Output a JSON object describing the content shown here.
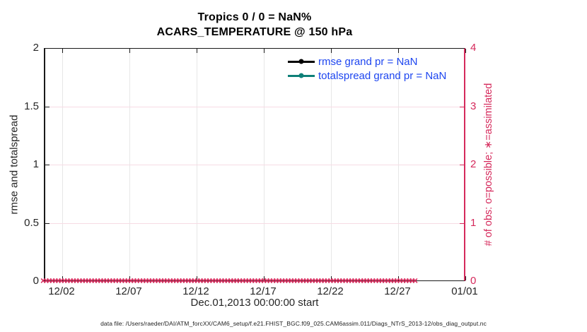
{
  "title": {
    "line1": "Tropics 0 / 0 = NaN%",
    "line2": "ACARS_TEMPERATURE @ 150 hPa"
  },
  "legend": {
    "items": [
      {
        "label": "rmse grand pr = NaN",
        "color": "#000000"
      },
      {
        "label": "totalspread grand pr = NaN",
        "color": "#0e8078"
      }
    ],
    "text_color": "#1e46f0"
  },
  "axes": {
    "left": {
      "label": "rmse and totalspread",
      "ticks": [
        "0",
        "0.5",
        "1",
        "1.5",
        "2"
      ],
      "color": "#262626",
      "ylim": [
        0,
        2
      ]
    },
    "right": {
      "label": "# of obs: o=possible; ∗=assimilated",
      "ticks": [
        "0",
        "1",
        "2",
        "3",
        "4"
      ],
      "color": "#d5295b",
      "ylim": [
        0,
        4
      ]
    },
    "x": {
      "label": "Dec.01,2013 00:00:00 start",
      "ticks": [
        "12/02",
        "12/07",
        "12/12",
        "12/17",
        "12/22",
        "12/27",
        "01/01"
      ]
    }
  },
  "colors": {
    "crimson": "#d5295b",
    "teal": "#0e8078",
    "legend_blue": "#1e46f0",
    "grid_gray": "#e7e7e7",
    "grid_pink": "#f7dbe4",
    "axis_dark": "#1a1a1a"
  },
  "footer": {
    "text": "data file: /Users/raeder/DAI/ATM_forcXX/CAM6_setup/f.e21.FHIST_BGC.f09_025.CAM6assim.011/Diags_NTrS_2013-12/obs_diag_output.nc"
  },
  "chart_data": {
    "type": "line",
    "title": "Tropics 0 / 0 = NaN% — ACARS_TEMPERATURE @ 150 hPa",
    "xlabel": "Dec.01,2013 00:00:00 start",
    "x_ticks": [
      "12/02",
      "12/07",
      "12/12",
      "12/17",
      "12/22",
      "12/27",
      "01/01"
    ],
    "x_range": [
      "12/01/2013",
      "01/01/2014"
    ],
    "left_axis": {
      "label": "rmse and totalspread",
      "ylim": [
        0,
        2
      ]
    },
    "right_axis": {
      "label": "# of obs: o=possible; ∗=assimilated",
      "ylim": [
        0,
        4
      ]
    },
    "grid": true,
    "legend_position": "upper-right-inside, no box",
    "series": [
      {
        "name": "rmse grand pr = NaN",
        "axis": "left",
        "color": "#000000",
        "marker": "filled-circle",
        "values": [],
        "note": "no data plotted (NaN)"
      },
      {
        "name": "totalspread grand pr = NaN",
        "axis": "left",
        "color": "#0e8078",
        "marker": "filled-circle",
        "values": [],
        "note": "no data plotted (NaN)"
      },
      {
        "name": "# of obs assimilated",
        "axis": "right",
        "color": "#d5295b",
        "marker": "×",
        "constant_value": 0,
        "n_markers": 124,
        "note": "dense row of × markers along y=0 spanning the full date range"
      }
    ]
  }
}
